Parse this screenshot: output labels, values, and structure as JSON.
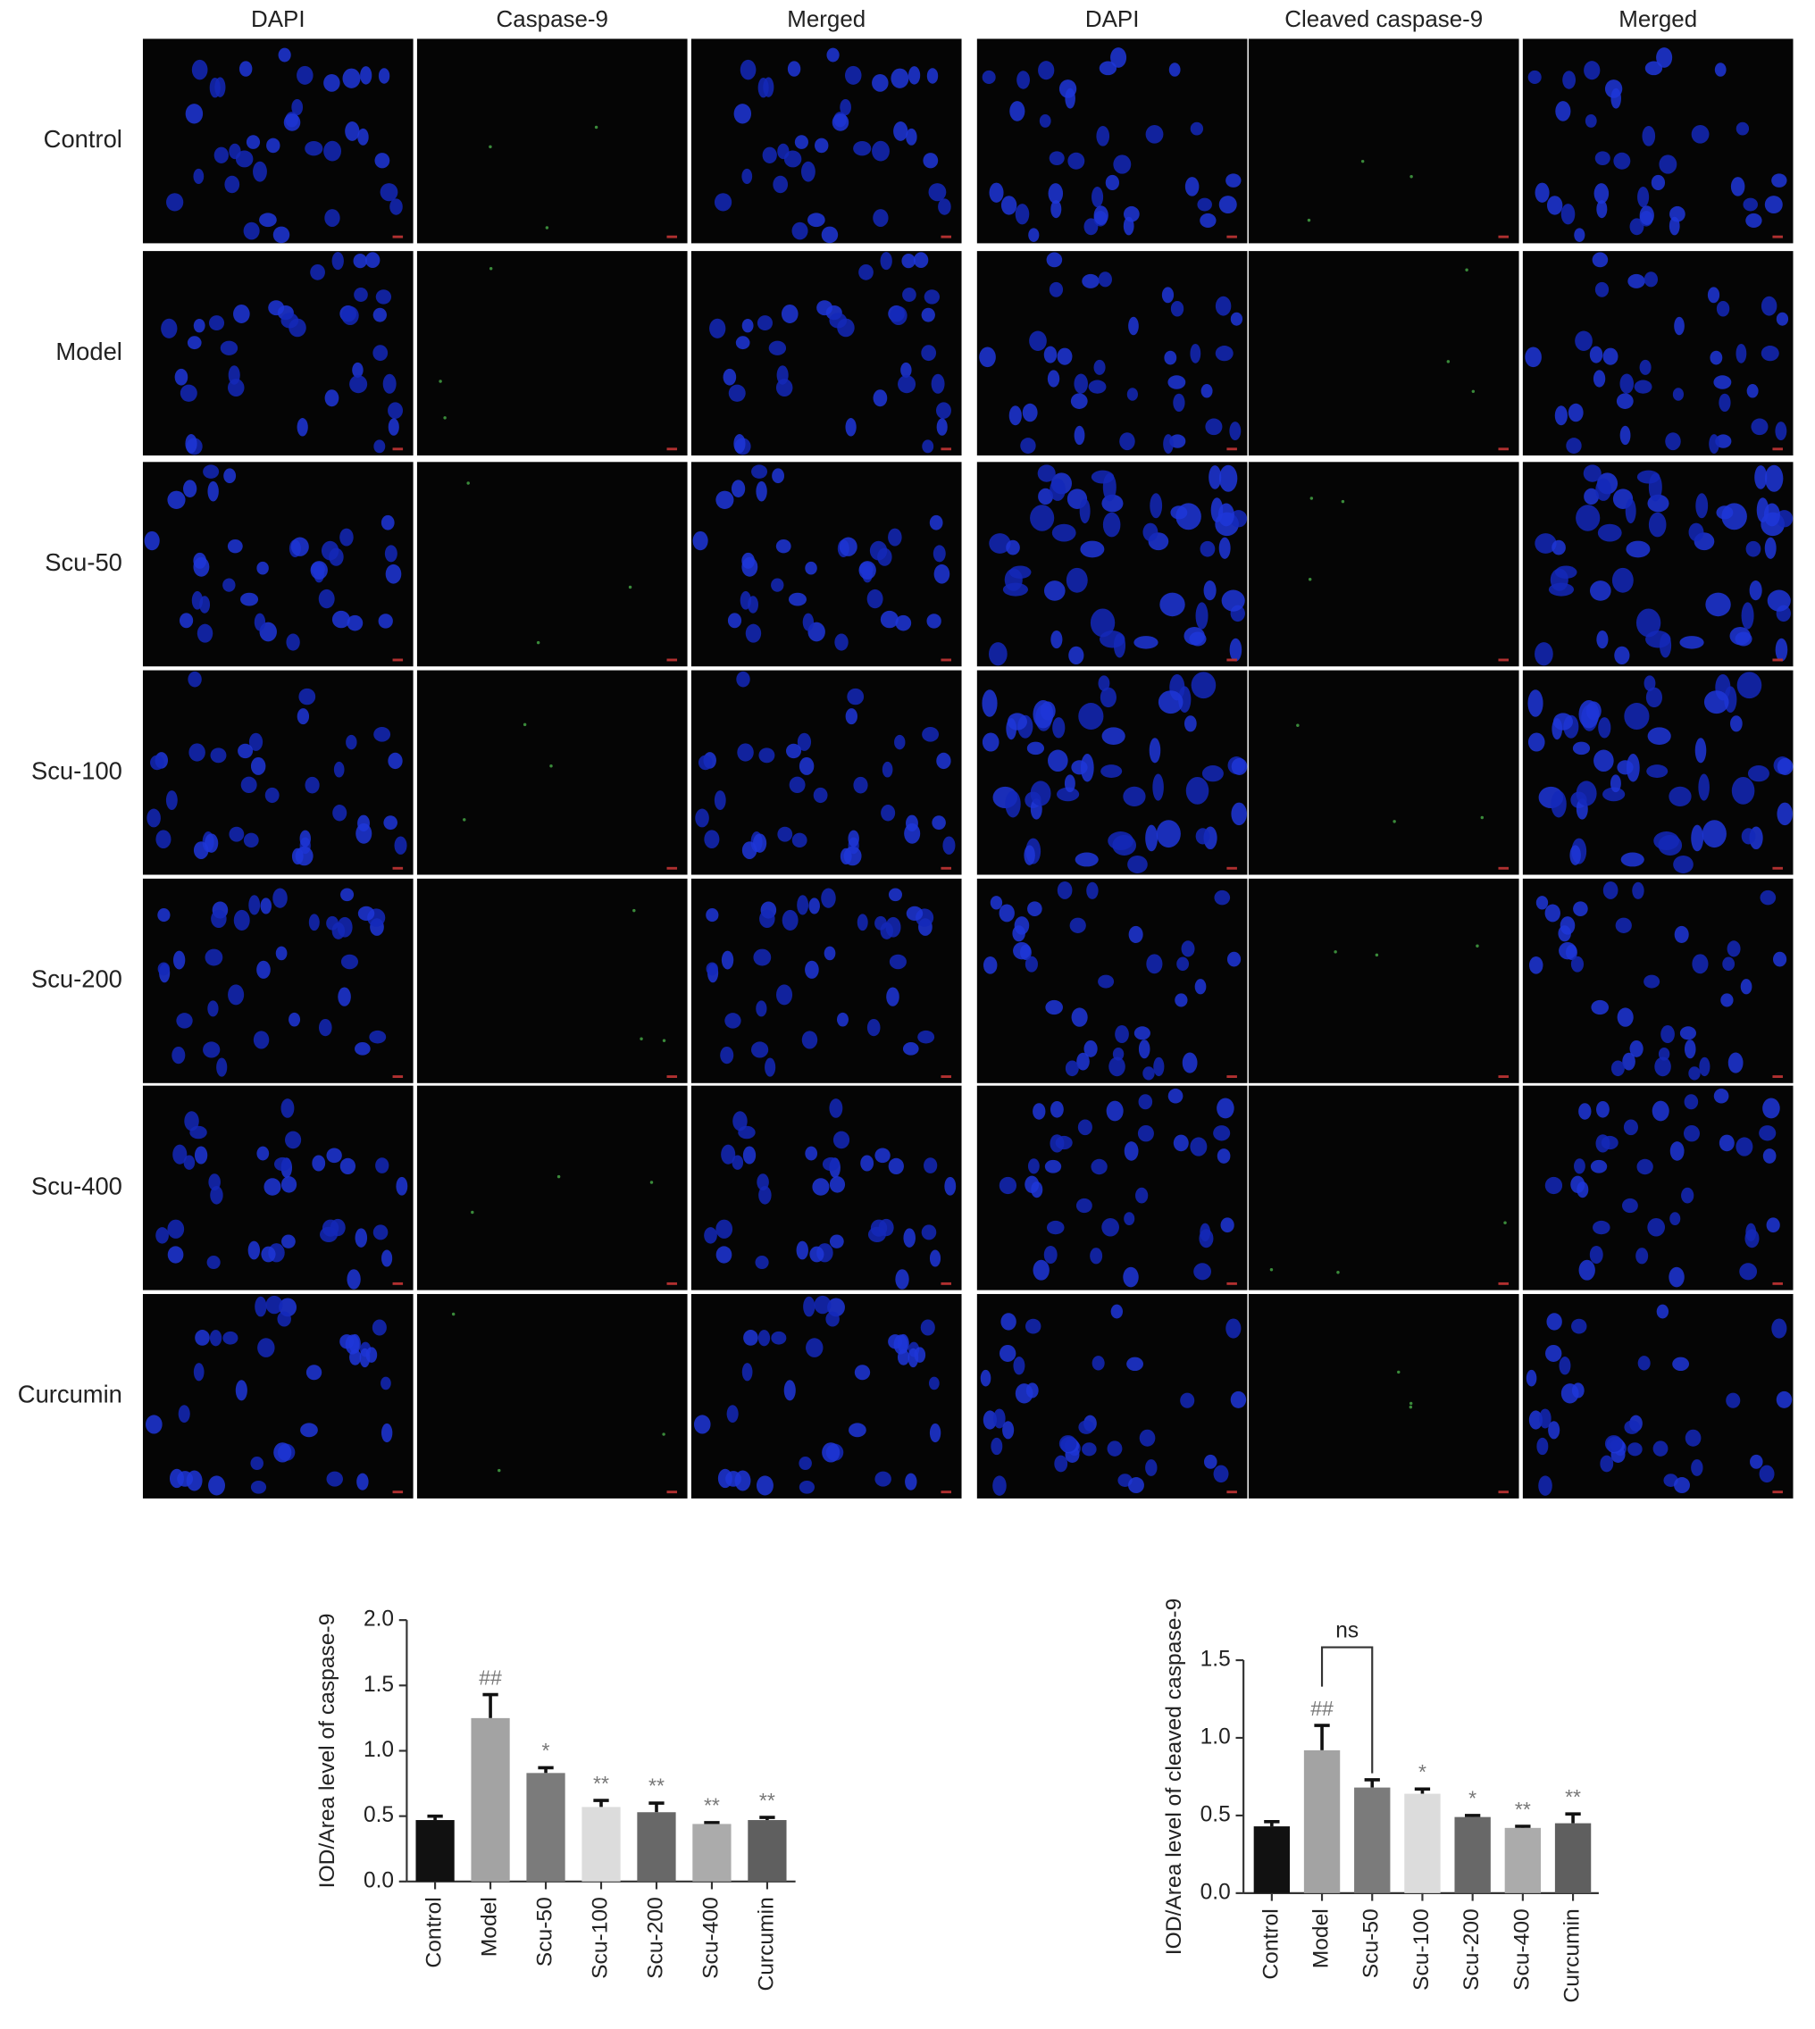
{
  "figure": {
    "left_columns": [
      "DAPI",
      "Caspase-9",
      "Merged"
    ],
    "right_columns": [
      "DAPI",
      "Cleaved caspase-9",
      "Merged"
    ],
    "rows": [
      "Control",
      "Model",
      "Scu-50",
      "Scu-100",
      "Scu-200",
      "Scu-400",
      "Curcumin"
    ]
  },
  "chart_data": [
    {
      "type": "bar",
      "y_label": "IOD/Area level of caspase-9",
      "categories": [
        "Control",
        "Model",
        "Scu-50",
        "Scu-100",
        "Scu-200",
        "Scu-400",
        "Curcumin"
      ],
      "values": [
        0.47,
        1.25,
        0.83,
        0.57,
        0.53,
        0.44,
        0.47
      ],
      "errors": [
        0.03,
        0.18,
        0.04,
        0.05,
        0.07,
        0.01,
        0.02
      ],
      "colors": [
        "#111111",
        "#a3a3a3",
        "#7b7b7b",
        "#dcdcdc",
        "#686868",
        "#ababab",
        "#5f5f5f"
      ],
      "annotations": [
        null,
        "##",
        "*",
        "**",
        "**",
        "**",
        "**"
      ],
      "ylim": [
        0,
        2.0
      ],
      "yticks": [
        {
          "value": 0,
          "label": "0.0"
        },
        {
          "value": 0.5,
          "label": "0.5"
        },
        {
          "value": 1,
          "label": "1.0"
        },
        {
          "value": 1.5,
          "label": "1.5"
        },
        {
          "value": 2,
          "label": "2.0"
        }
      ]
    },
    {
      "type": "bar",
      "y_label": "IOD/Area level of cleaved caspase-9",
      "categories": [
        "Control",
        "Model",
        "Scu-50",
        "Scu-100",
        "Scu-200",
        "Scu-400",
        "Curcumin"
      ],
      "values": [
        0.43,
        0.92,
        0.68,
        0.64,
        0.49,
        0.42,
        0.45
      ],
      "errors": [
        0.03,
        0.16,
        0.05,
        0.03,
        0.01,
        0.01,
        0.06
      ],
      "colors": [
        "#111111",
        "#a3a3a3",
        "#7b7b7b",
        "#dcdcdc",
        "#686868",
        "#ababab",
        "#5f5f5f"
      ],
      "annotations": [
        null,
        "##",
        null,
        "*",
        "*",
        "**",
        "**"
      ],
      "bracket": {
        "label": "ns",
        "from": 1,
        "to": 2
      },
      "ylim": [
        0,
        1.5
      ],
      "yticks": [
        {
          "value": 0,
          "label": "0.0"
        },
        {
          "value": 0.5,
          "label": "0.5"
        },
        {
          "value": 1,
          "label": "1.0"
        },
        {
          "value": 1.5,
          "label": "1.5"
        }
      ]
    }
  ]
}
